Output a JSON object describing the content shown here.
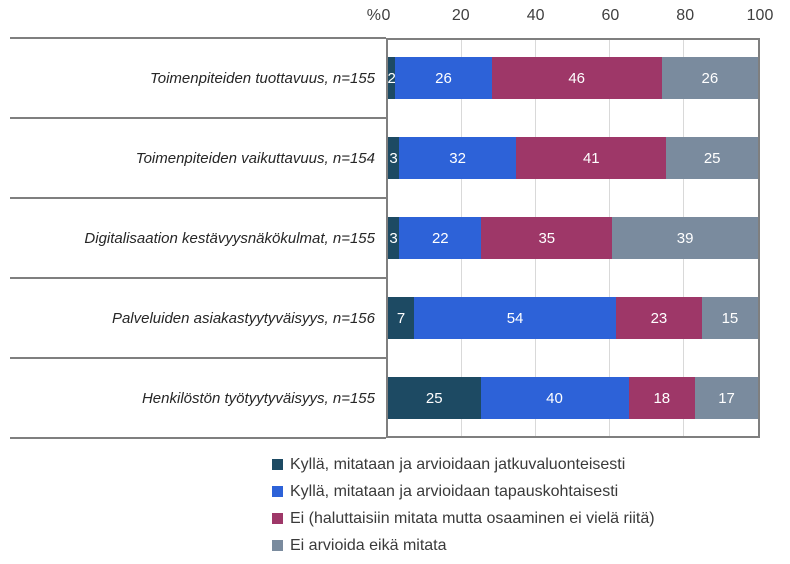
{
  "chart_data": {
    "type": "bar",
    "orientation": "horizontal",
    "stacked": true,
    "unit": "%",
    "axis_prefix": "%",
    "x_ticks": [
      0,
      20,
      40,
      60,
      80,
      100
    ],
    "xlim": [
      0,
      100
    ],
    "grid": true,
    "legend_position": "bottom",
    "categories": [
      "Toimenpiteiden tuottavuus, n=155",
      "Toimenpiteiden vaikuttavuus, n=154",
      "Digitalisaation kestävyysnäkökulmat, n=155",
      "Palveluiden asiakastyytyväisyys, n=156",
      "Henkilöstön työtyytyväisyys, n=155"
    ],
    "series": [
      {
        "name": "Kyllä, mitataan ja arvioidaan jatkuvaluonteisesti",
        "color": "#1d4a63",
        "values": [
          2,
          3,
          3,
          7,
          25
        ]
      },
      {
        "name": "Kyllä, mitataan ja arvioidaan tapauskohtaisesti",
        "color": "#2d62d8",
        "values": [
          26,
          32,
          22,
          54,
          40
        ]
      },
      {
        "name": "Ei (haluttaisiin mitata mutta osaaminen ei vielä riitä)",
        "color": "#9e3768",
        "values": [
          46,
          41,
          35,
          23,
          18
        ]
      },
      {
        "name": "Ei arvioida eikä mitata",
        "color": "#7a8b9e",
        "values": [
          26,
          25,
          39,
          15,
          17
        ]
      }
    ]
  },
  "style_colors": {
    "gridline": "#d9d9d9",
    "border": "#7f7f7f",
    "axis_text": "#3f3f3f",
    "category_text": "#262626",
    "value_text": "#ffffff",
    "background": "#ffffff"
  }
}
